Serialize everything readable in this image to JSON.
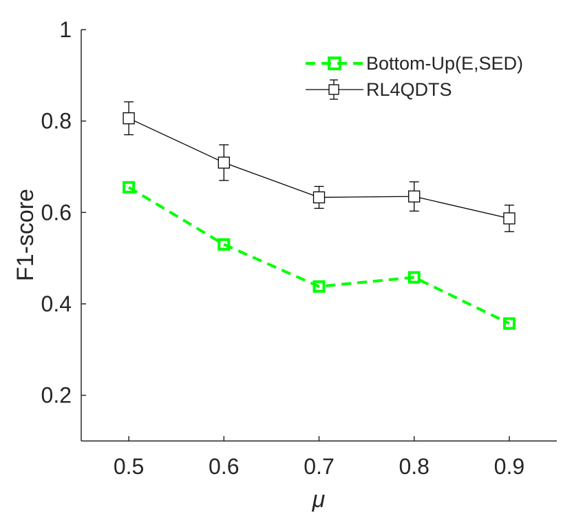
{
  "chart_data": {
    "type": "line",
    "title": "",
    "xlabel": "μ",
    "ylabel": "F1-score",
    "xlim": [
      0.45,
      0.95
    ],
    "ylim": [
      0.1,
      1.0
    ],
    "x": [
      0.5,
      0.6,
      0.7,
      0.8,
      0.9
    ],
    "xticks": [
      "0.5",
      "0.6",
      "0.7",
      "0.8",
      "0.9"
    ],
    "yticks": [
      "0.2",
      "0.4",
      "0.6",
      "0.8",
      "1"
    ],
    "ytick_values": [
      0.2,
      0.4,
      0.6,
      0.8,
      1.0
    ],
    "grid": false,
    "legend_position": "top-right",
    "series": [
      {
        "name": "Bottom-Up(E,SED)",
        "values": [
          0.655,
          0.53,
          0.438,
          0.458,
          0.357
        ],
        "color": "#00ff00",
        "line_style": "dashed",
        "marker": "square"
      },
      {
        "name": "RL4QDTS",
        "values": [
          0.806,
          0.709,
          0.633,
          0.635,
          0.587
        ],
        "error": [
          0.036,
          0.039,
          0.024,
          0.032,
          0.029
        ],
        "color": "#000000",
        "line_style": "solid",
        "marker": "square"
      }
    ]
  }
}
